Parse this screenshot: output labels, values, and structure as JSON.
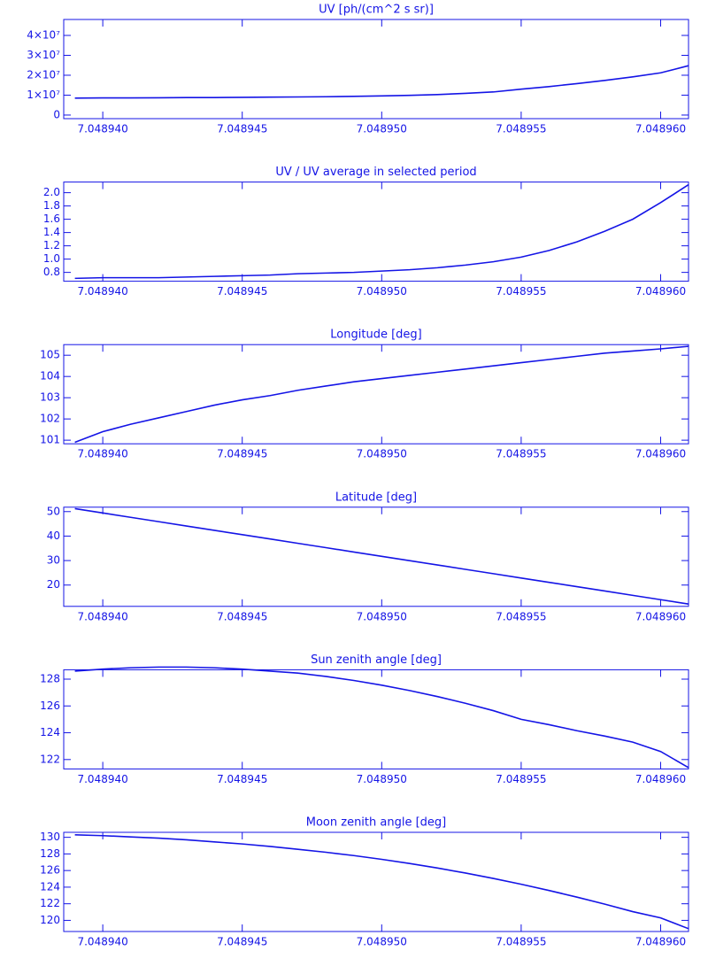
{
  "chart_data": [
    {
      "type": "line",
      "title": "UV [ph/(cm^2 s sr)]",
      "color": "#1414e6",
      "x": [
        7.048939,
        7.04894,
        7.048941,
        7.048942,
        7.048943,
        7.048944,
        7.048945,
        7.048946,
        7.048947,
        7.048948,
        7.048949,
        7.04895,
        7.048951,
        7.048952,
        7.048953,
        7.048954,
        7.048955,
        7.048956,
        7.048957,
        7.048958,
        7.048959,
        7.04896,
        7.048961
      ],
      "values": [
        8500000,
        8600000,
        8600000,
        8700000,
        8800000,
        8800000,
        8900000,
        9000000,
        9100000,
        9200000,
        9400000,
        9600000,
        9900000,
        10300000,
        10900000,
        11600000,
        13000000,
        14300000,
        15800000,
        17400000,
        19200000,
        21200000,
        24800000
      ],
      "xlim": [
        7.0489386,
        7.048961
      ],
      "xticks": [
        {
          "value": 7.04894,
          "label": "7.048940"
        },
        {
          "value": 7.048945,
          "label": "7.048945"
        },
        {
          "value": 7.04895,
          "label": "7.048950"
        },
        {
          "value": 7.048955,
          "label": "7.048955"
        },
        {
          "value": 7.04896,
          "label": "7.048960"
        }
      ],
      "ylim": [
        -1800000,
        48000000
      ],
      "yticks": [
        0,
        {
          "value": 10000000,
          "label": "1×10⁷"
        },
        {
          "value": 20000000,
          "label": "2×10⁷"
        },
        {
          "value": 30000000,
          "label": "3×10⁷"
        },
        {
          "value": 40000000,
          "label": "4×10⁷"
        }
      ]
    },
    {
      "type": "line",
      "title": "UV / UV average in selected period",
      "color": "#1414e6",
      "x": [
        7.048939,
        7.04894,
        7.048941,
        7.048942,
        7.048943,
        7.048944,
        7.048945,
        7.048946,
        7.048947,
        7.048948,
        7.048949,
        7.04895,
        7.048951,
        7.048952,
        7.048953,
        7.048954,
        7.048955,
        7.048956,
        7.048957,
        7.048958,
        7.048959,
        7.04896,
        7.048961
      ],
      "values": [
        0.71,
        0.72,
        0.72,
        0.72,
        0.73,
        0.74,
        0.75,
        0.76,
        0.78,
        0.79,
        0.8,
        0.82,
        0.84,
        0.87,
        0.91,
        0.96,
        1.03,
        1.13,
        1.26,
        1.42,
        1.6,
        1.85,
        2.12
      ],
      "xlim": [
        7.0489386,
        7.048961
      ],
      "xticks": [
        {
          "value": 7.04894,
          "label": "7.048940"
        },
        {
          "value": 7.048945,
          "label": "7.048945"
        },
        {
          "value": 7.04895,
          "label": "7.048950"
        },
        {
          "value": 7.048955,
          "label": "7.048955"
        },
        {
          "value": 7.04896,
          "label": "7.048960"
        }
      ],
      "ylim": [
        0.667,
        2.16
      ],
      "yticks": [
        0.8,
        {
          "value": 1.0,
          "label": "1.0"
        },
        1.2,
        1.4,
        1.6,
        1.8,
        {
          "value": 2.0,
          "label": "2.0"
        }
      ]
    },
    {
      "type": "line",
      "title": "Longitude [deg]",
      "color": "#1414e6",
      "x": [
        7.048939,
        7.04894,
        7.048941,
        7.048942,
        7.048943,
        7.048944,
        7.048945,
        7.048946,
        7.048947,
        7.048948,
        7.048949,
        7.04895,
        7.048951,
        7.048952,
        7.048953,
        7.048954,
        7.048955,
        7.048956,
        7.048957,
        7.048958,
        7.048959,
        7.04896,
        7.048961
      ],
      "values": [
        100.9,
        101.4,
        101.75,
        102.05,
        102.35,
        102.65,
        102.9,
        103.1,
        103.35,
        103.55,
        103.75,
        103.9,
        104.05,
        104.2,
        104.35,
        104.5,
        104.65,
        104.8,
        104.95,
        105.1,
        105.2,
        105.3,
        105.42
      ],
      "xlim": [
        7.0489386,
        7.048961
      ],
      "xticks": [
        {
          "value": 7.04894,
          "label": "7.048940"
        },
        {
          "value": 7.048945,
          "label": "7.048945"
        },
        {
          "value": 7.04895,
          "label": "7.048950"
        },
        {
          "value": 7.048955,
          "label": "7.048955"
        },
        {
          "value": 7.04896,
          "label": "7.048960"
        }
      ],
      "ylim": [
        100.83,
        105.5
      ],
      "yticks": [
        101,
        102,
        103,
        104,
        105
      ]
    },
    {
      "type": "line",
      "title": "Latitude [deg]",
      "color": "#1414e6",
      "x": [
        7.048939,
        7.04894,
        7.048941,
        7.048942,
        7.048943,
        7.048944,
        7.048945,
        7.048946,
        7.048947,
        7.048948,
        7.048949,
        7.04895,
        7.048951,
        7.048952,
        7.048953,
        7.048954,
        7.048955,
        7.048956,
        7.048957,
        7.048958,
        7.048959,
        7.04896,
        7.048961
      ],
      "values": [
        51.2,
        49.43,
        47.66,
        45.89,
        44.12,
        42.35,
        40.58,
        38.81,
        37.04,
        35.27,
        33.5,
        31.73,
        29.96,
        28.19,
        26.42,
        24.65,
        22.88,
        21.11,
        19.34,
        17.57,
        15.8,
        14.03,
        12.26
      ],
      "xlim": [
        7.0489386,
        7.048961
      ],
      "xticks": [
        {
          "value": 7.04894,
          "label": "7.048940"
        },
        {
          "value": 7.048945,
          "label": "7.048945"
        },
        {
          "value": 7.04895,
          "label": "7.048950"
        },
        {
          "value": 7.048955,
          "label": "7.048955"
        },
        {
          "value": 7.04896,
          "label": "7.048960"
        }
      ],
      "ylim": [
        11.3,
        51.8
      ],
      "yticks": [
        20,
        30,
        40,
        50
      ]
    },
    {
      "type": "line",
      "title": "Sun zenith angle [deg]",
      "color": "#1414e6",
      "x": [
        7.048939,
        7.04894,
        7.048941,
        7.048942,
        7.048943,
        7.048944,
        7.048945,
        7.048946,
        7.048947,
        7.048948,
        7.048949,
        7.04895,
        7.048951,
        7.048952,
        7.048953,
        7.048954,
        7.048955,
        7.048956,
        7.048957,
        7.048958,
        7.048959,
        7.04896,
        7.048961
      ],
      "values": [
        128.6,
        128.75,
        128.85,
        128.9,
        128.9,
        128.85,
        128.75,
        128.6,
        128.45,
        128.2,
        127.9,
        127.55,
        127.15,
        126.7,
        126.2,
        125.65,
        125.0,
        124.6,
        124.15,
        123.75,
        123.3,
        122.6,
        121.4
      ],
      "xlim": [
        7.0489386,
        7.048961
      ],
      "xticks": [
        {
          "value": 7.04894,
          "label": "7.048940"
        },
        {
          "value": 7.048945,
          "label": "7.048945"
        },
        {
          "value": 7.04895,
          "label": "7.048950"
        },
        {
          "value": 7.048955,
          "label": "7.048955"
        },
        {
          "value": 7.04896,
          "label": "7.048960"
        }
      ],
      "ylim": [
        121.3,
        128.7
      ],
      "yticks": [
        122,
        124,
        126,
        128
      ]
    },
    {
      "type": "line",
      "title": "Moon zenith angle [deg]",
      "color": "#1414e6",
      "x": [
        7.048939,
        7.04894,
        7.048941,
        7.048942,
        7.048943,
        7.048944,
        7.048945,
        7.048946,
        7.048947,
        7.048948,
        7.048949,
        7.04895,
        7.048951,
        7.048952,
        7.048953,
        7.048954,
        7.048955,
        7.048956,
        7.048957,
        7.048958,
        7.048959,
        7.04896,
        7.048961
      ],
      "values": [
        130.3,
        130.2,
        130.05,
        129.9,
        129.7,
        129.45,
        129.2,
        128.9,
        128.55,
        128.2,
        127.8,
        127.35,
        126.85,
        126.3,
        125.7,
        125.05,
        124.35,
        123.6,
        122.8,
        121.95,
        121.05,
        120.3,
        119.0
      ],
      "xlim": [
        7.0489386,
        7.048961
      ],
      "xticks": [
        {
          "value": 7.04894,
          "label": "7.048940"
        },
        {
          "value": 7.048945,
          "label": "7.048945"
        },
        {
          "value": 7.04895,
          "label": "7.048950"
        },
        {
          "value": 7.048955,
          "label": "7.048955"
        },
        {
          "value": 7.04896,
          "label": "7.048960"
        }
      ],
      "ylim": [
        118.66,
        130.6
      ],
      "yticks": [
        120,
        122,
        124,
        126,
        128,
        130
      ]
    }
  ]
}
